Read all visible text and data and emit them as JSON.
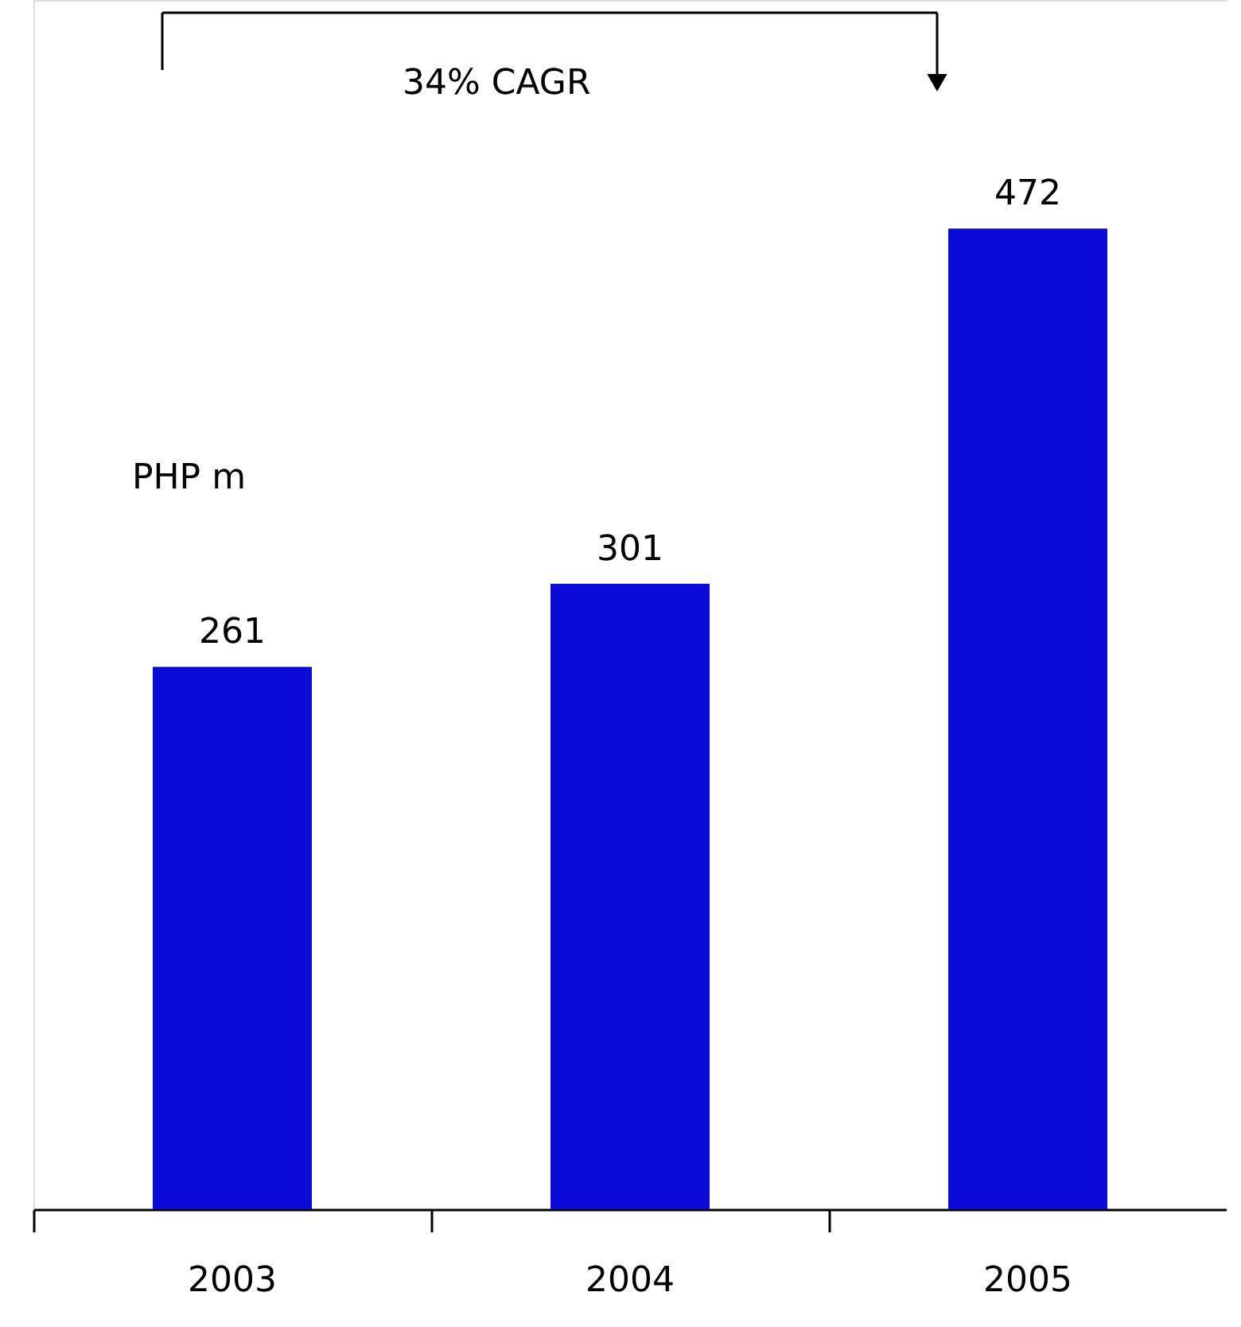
{
  "chart_data": {
    "type": "bar",
    "categories": [
      "2003",
      "2004",
      "2005"
    ],
    "values": [
      261,
      301,
      472
    ],
    "color": "#0a0ad8",
    "ylabel": "PHP m",
    "data_labels": true,
    "annotations": [
      "34% CAGR"
    ]
  }
}
